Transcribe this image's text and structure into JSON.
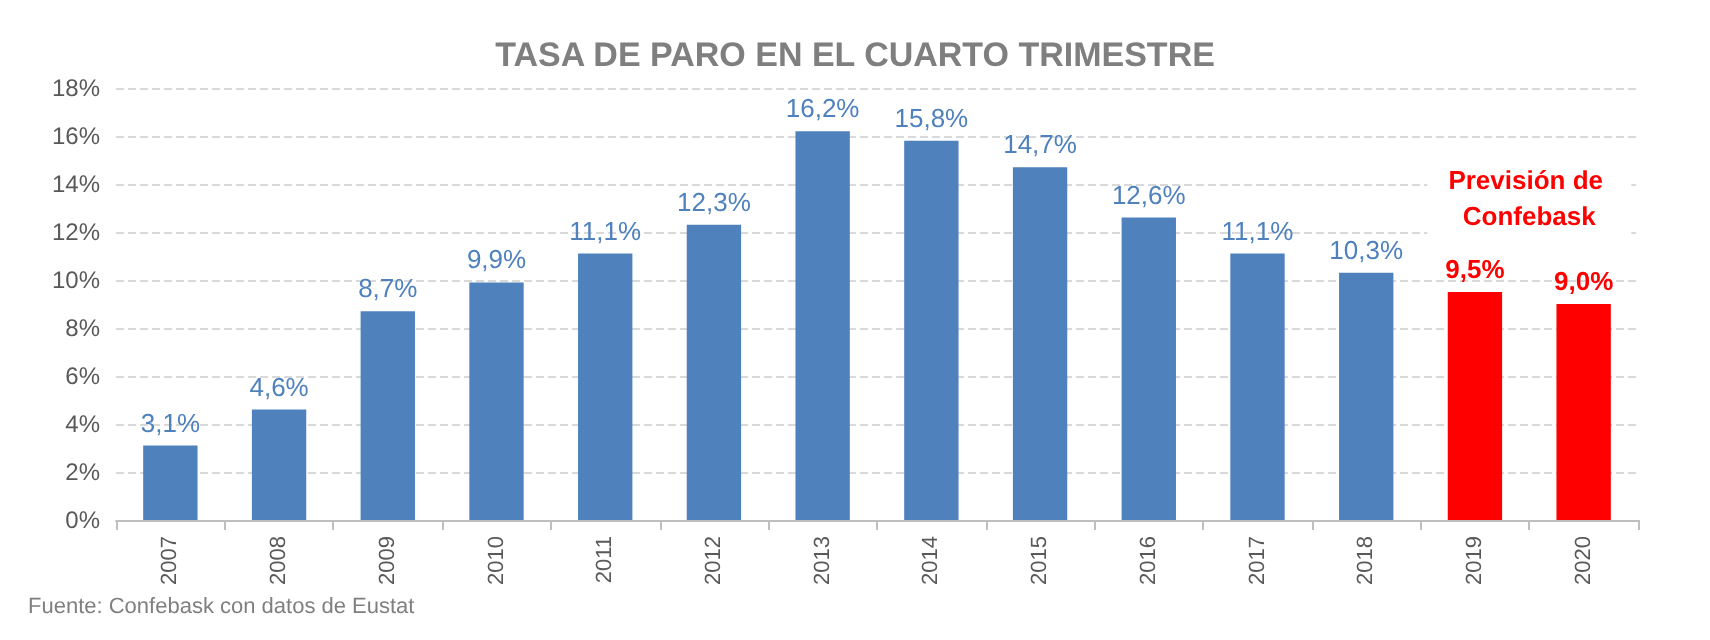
{
  "chart_data": {
    "type": "bar",
    "title": "TASA DE PARO EN EL CUARTO TRIMESTRE",
    "categories": [
      "2007",
      "2008",
      "2009",
      "2010",
      "2011",
      "2012",
      "2013",
      "2014",
      "2015",
      "2016",
      "2017",
      "2018",
      "2019",
      "2020"
    ],
    "values": [
      3.1,
      4.6,
      8.7,
      9.9,
      11.1,
      12.3,
      16.2,
      15.8,
      14.7,
      12.6,
      11.1,
      10.3,
      9.5,
      9.0
    ],
    "value_labels": [
      "3,1%",
      "4,6%",
      "8,7%",
      "9,9%",
      "11,1%",
      "12,3%",
      "16,2%",
      "15,8%",
      "14,7%",
      "12,6%",
      "11,1%",
      "10,3%",
      "9,5%",
      "9,0%"
    ],
    "colors": [
      "#4f81bd",
      "#4f81bd",
      "#4f81bd",
      "#4f81bd",
      "#4f81bd",
      "#4f81bd",
      "#4f81bd",
      "#4f81bd",
      "#4f81bd",
      "#4f81bd",
      "#4f81bd",
      "#4f81bd",
      "#ff0000",
      "#ff0000"
    ],
    "ylim": [
      0,
      18
    ],
    "yticks": [
      {
        "value": 0,
        "label": "0%"
      },
      {
        "value": 2,
        "label": "2%"
      },
      {
        "value": 4,
        "label": "4%"
      },
      {
        "value": 6,
        "label": "6%"
      },
      {
        "value": 8,
        "label": "8%"
      },
      {
        "value": 10,
        "label": "10%"
      },
      {
        "value": 12,
        "label": "12%"
      },
      {
        "value": 14,
        "label": "14%"
      },
      {
        "value": 16,
        "label": "16%"
      },
      {
        "value": 18,
        "label": "18%"
      }
    ],
    "grid": "y",
    "annotations": [
      "Previsión de Confebask",
      "Fuente: Confebask con datos de Eustat"
    ]
  }
}
